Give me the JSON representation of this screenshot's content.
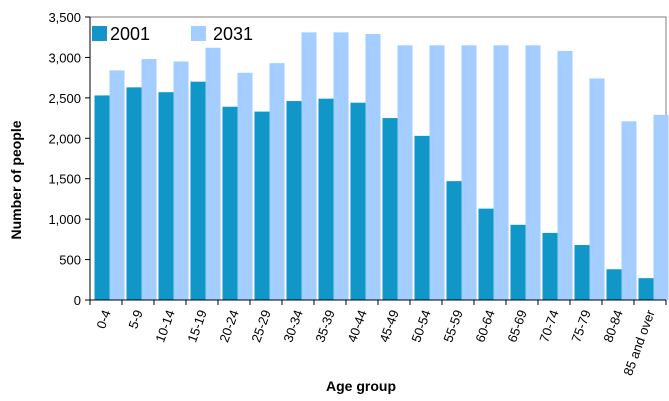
{
  "chart_data": {
    "type": "bar",
    "title": "",
    "xlabel": "Age group",
    "ylabel": "Number of people",
    "ylim": [
      0,
      3500
    ],
    "yticks": [
      0,
      500,
      1000,
      1500,
      2000,
      2500,
      3000,
      3500
    ],
    "ytick_labels": [
      "0",
      "500",
      "1,000",
      "1,500",
      "2,000",
      "2,500",
      "3,000",
      "3,500"
    ],
    "grid": false,
    "legend_position": "top-left",
    "categories": [
      "0-4",
      "5-9",
      "10-14",
      "15-19",
      "20-24",
      "25-29",
      "30-34",
      "35-39",
      "40-44",
      "45-49",
      "50-54",
      "55-59",
      "60-64",
      "65-69",
      "70-74",
      "75-79",
      "80-84",
      "85 and over"
    ],
    "series": [
      {
        "name": "2001",
        "color": "#1196c8",
        "values": [
          2530,
          2630,
          2570,
          2700,
          2390,
          2330,
          2460,
          2490,
          2440,
          2250,
          2030,
          1470,
          1130,
          930,
          830,
          680,
          380,
          270
        ]
      },
      {
        "name": "2031",
        "color": "#a4ceff",
        "values": [
          2840,
          2980,
          2950,
          3120,
          2810,
          2930,
          3310,
          3310,
          3290,
          3150,
          3150,
          3150,
          3150,
          3150,
          3080,
          2740,
          2210,
          2290
        ]
      }
    ]
  }
}
